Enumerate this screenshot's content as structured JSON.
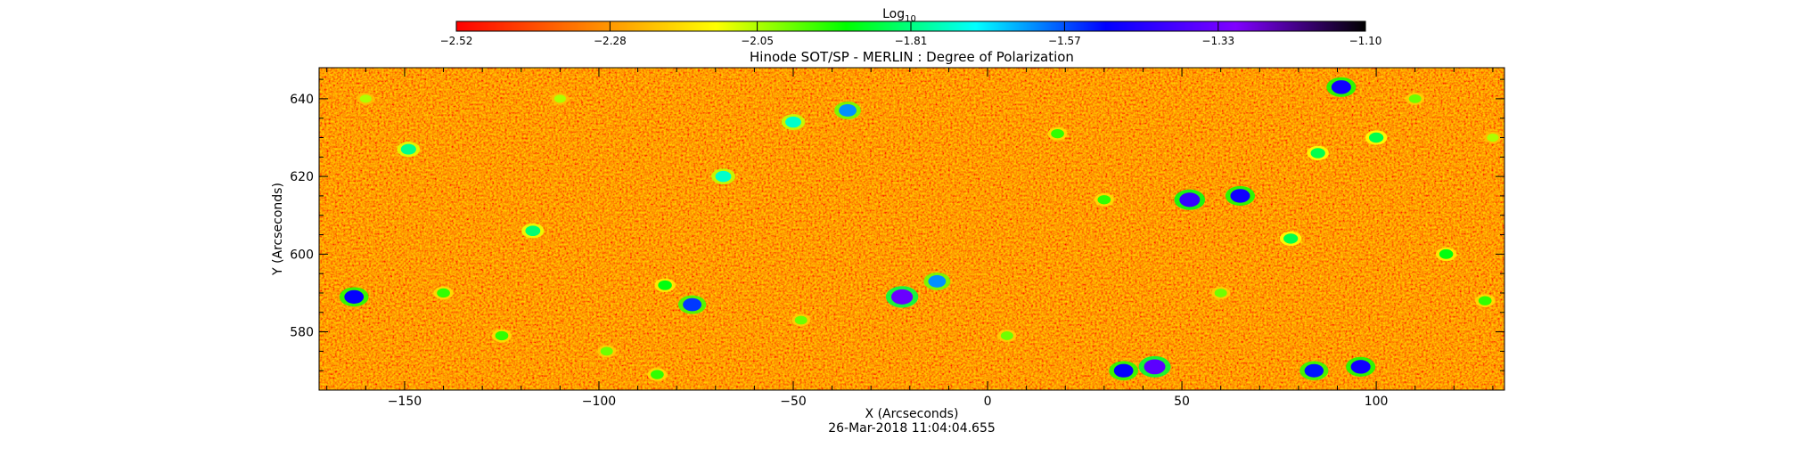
{
  "chart_data": {
    "type": "heatmap",
    "title": "Hinode SOT/SP - MERLIN : Degree of Polarization",
    "xlabel": "X (Arcseconds)",
    "ylabel": "Y (Arcseconds)",
    "timestamp": "26-Mar-2018 11:04:04.655",
    "xlim": [
      -172,
      133
    ],
    "ylim": [
      565,
      648
    ],
    "xticks": [
      -150,
      -100,
      -50,
      0,
      50,
      100
    ],
    "xtick_labels": [
      "−150",
      "−100",
      "−50",
      "0",
      "50",
      "100"
    ],
    "yticks": [
      580,
      600,
      620,
      640
    ],
    "ytick_labels": [
      "580",
      "600",
      "620",
      "640"
    ],
    "colorbar": {
      "label_base": "Log",
      "label_sub": "10",
      "range": [
        -2.52,
        -1.1
      ],
      "ticks": [
        -2.52,
        -2.28,
        -2.05,
        -1.81,
        -1.57,
        -1.33,
        -1.1
      ],
      "tick_labels": [
        "−2.52",
        "−2.28",
        "−2.05",
        "−1.81",
        "−1.57",
        "−1.33",
        "−1.10"
      ],
      "colormap": [
        "#ff0000",
        "#ff8000",
        "#ffff00",
        "#00ff00",
        "#00ffff",
        "#0000ff",
        "#8000ff",
        "#000000"
      ]
    },
    "background_value": -2.38,
    "features": [
      {
        "x": -22,
        "y": 589,
        "value": -1.34
      },
      {
        "x": 43,
        "y": 571,
        "value": -1.36
      },
      {
        "x": 35,
        "y": 570,
        "value": -1.5
      },
      {
        "x": 52,
        "y": 614,
        "value": -1.42
      },
      {
        "x": 65,
        "y": 615,
        "value": -1.48
      },
      {
        "x": 91,
        "y": 643,
        "value": -1.48
      },
      {
        "x": 96,
        "y": 571,
        "value": -1.48
      },
      {
        "x": 84,
        "y": 570,
        "value": -1.52
      },
      {
        "x": -163,
        "y": 589,
        "value": -1.5
      },
      {
        "x": -76,
        "y": 587,
        "value": -1.55
      },
      {
        "x": -13,
        "y": 593,
        "value": -1.62
      },
      {
        "x": -36,
        "y": 637,
        "value": -1.62
      },
      {
        "x": -50,
        "y": 634,
        "value": -1.75
      },
      {
        "x": -68,
        "y": 620,
        "value": -1.75
      },
      {
        "x": -149,
        "y": 627,
        "value": -1.8
      },
      {
        "x": -117,
        "y": 606,
        "value": -1.82
      },
      {
        "x": 85,
        "y": 626,
        "value": -1.85
      },
      {
        "x": 100,
        "y": 630,
        "value": -1.85
      },
      {
        "x": 78,
        "y": 604,
        "value": -1.85
      },
      {
        "x": 118,
        "y": 600,
        "value": -1.9
      },
      {
        "x": -125,
        "y": 579,
        "value": -1.95
      },
      {
        "x": -83,
        "y": 592,
        "value": -1.9
      },
      {
        "x": -140,
        "y": 590,
        "value": -1.95
      },
      {
        "x": -85,
        "y": 569,
        "value": -1.95
      },
      {
        "x": 18,
        "y": 631,
        "value": -1.95
      },
      {
        "x": 30,
        "y": 614,
        "value": -1.95
      },
      {
        "x": 128,
        "y": 588,
        "value": -1.95
      },
      {
        "x": -48,
        "y": 583,
        "value": -2.0
      },
      {
        "x": 5,
        "y": 579,
        "value": -2.0
      },
      {
        "x": -98,
        "y": 575,
        "value": -2.0
      },
      {
        "x": 110,
        "y": 640,
        "value": -2.0
      },
      {
        "x": 60,
        "y": 590,
        "value": -2.0
      },
      {
        "x": -160,
        "y": 640,
        "value": -2.05
      },
      {
        "x": -110,
        "y": 640,
        "value": -2.05
      },
      {
        "x": 130,
        "y": 630,
        "value": -2.05
      }
    ]
  }
}
